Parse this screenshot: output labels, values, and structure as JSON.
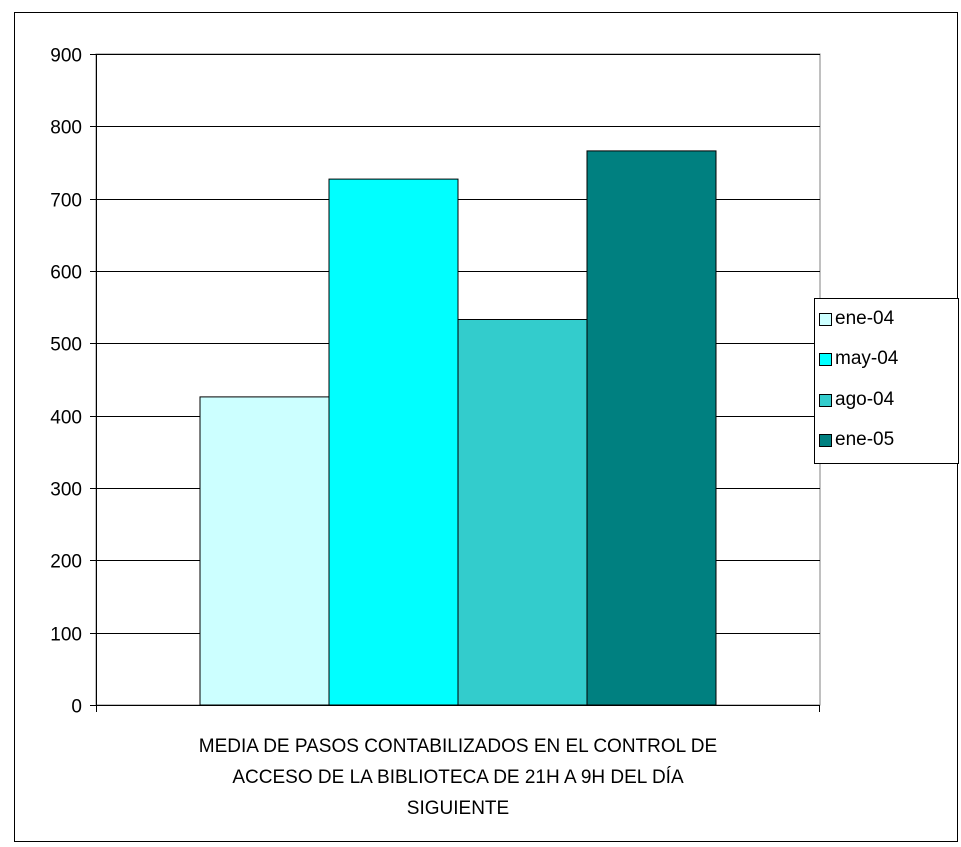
{
  "chart_data": {
    "type": "bar",
    "title": "",
    "categories": [
      "MEDIA DE PASOS CONTABILIZADOS EN EL CONTROL DE ACCESO DE LA BIBLIOTECA DE 21H A 9H DEL DÍA SIGUIENTE"
    ],
    "xlabel_lines": [
      "MEDIA DE PASOS CONTABILIZADOS EN EL CONTROL DE",
      "ACCESO DE LA BIBLIOTECA DE 21H A 9H DEL DÍA",
      "SIGUIENTE"
    ],
    "series": [
      {
        "name": "ene-04",
        "values": [
          426
        ],
        "color": "#CCFFFF"
      },
      {
        "name": "may-04",
        "values": [
          727
        ],
        "color": "#00FFFF"
      },
      {
        "name": "ago-04",
        "values": [
          533
        ],
        "color": "#33CCCC"
      },
      {
        "name": "ene-05",
        "values": [
          766
        ],
        "color": "#008080"
      }
    ],
    "ylim": [
      0,
      900
    ],
    "yticks": [
      0,
      100,
      200,
      300,
      400,
      500,
      600,
      700,
      800,
      900
    ],
    "grid": true,
    "legend": "right"
  }
}
